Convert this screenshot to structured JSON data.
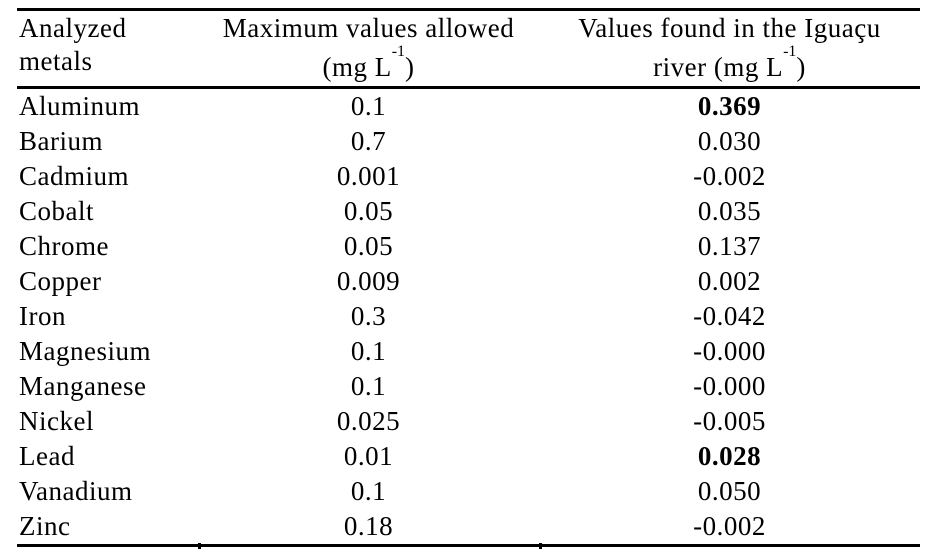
{
  "page": {
    "background_color": "#ffffff",
    "text_color": "#000000"
  },
  "table": {
    "header": {
      "col1": {
        "line1": "Analyzed",
        "line2": "metals"
      },
      "col2": {
        "line1": "Maximum values allowed",
        "unit_pre": "(mg L",
        "unit_sup": "-1",
        "unit_post": ")"
      },
      "col3": {
        "line1": "Values found in the Iguaçu",
        "unit_pre": "river (mg L",
        "unit_sup": "-1",
        "unit_post": ")"
      }
    },
    "rows": [
      {
        "metal": "Aluminum",
        "max_allowed": "0.1",
        "found": "0.369",
        "found_bold": true
      },
      {
        "metal": "Barium",
        "max_allowed": "0.7",
        "found": "0.030",
        "found_bold": false
      },
      {
        "metal": "Cadmium",
        "max_allowed": "0.001",
        "found": "-0.002",
        "found_bold": false
      },
      {
        "metal": "Cobalt",
        "max_allowed": "0.05",
        "found": "0.035",
        "found_bold": false
      },
      {
        "metal": "Chrome",
        "max_allowed": "0.05",
        "found": "0.137",
        "found_bold": false
      },
      {
        "metal": "Copper",
        "max_allowed": "0.009",
        "found": "0.002",
        "found_bold": false
      },
      {
        "metal": "Iron",
        "max_allowed": "0.3",
        "found": "-0.042",
        "found_bold": false
      },
      {
        "metal": "Magnesium",
        "max_allowed": "0.1",
        "found": "-0.000",
        "found_bold": false
      },
      {
        "metal": "Manganese",
        "max_allowed": "0.1",
        "found": "-0.000",
        "found_bold": false
      },
      {
        "metal": "Nickel",
        "max_allowed": "0.025",
        "found": "-0.005",
        "found_bold": false
      },
      {
        "metal": "Lead",
        "max_allowed": "0.01",
        "found": "0.028",
        "found_bold": true
      },
      {
        "metal": "Vanadium",
        "max_allowed": "0.1",
        "found": "0.050",
        "found_bold": false
      },
      {
        "metal": "Zinc",
        "max_allowed": "0.18",
        "found": "-0.002",
        "found_bold": false
      }
    ]
  }
}
